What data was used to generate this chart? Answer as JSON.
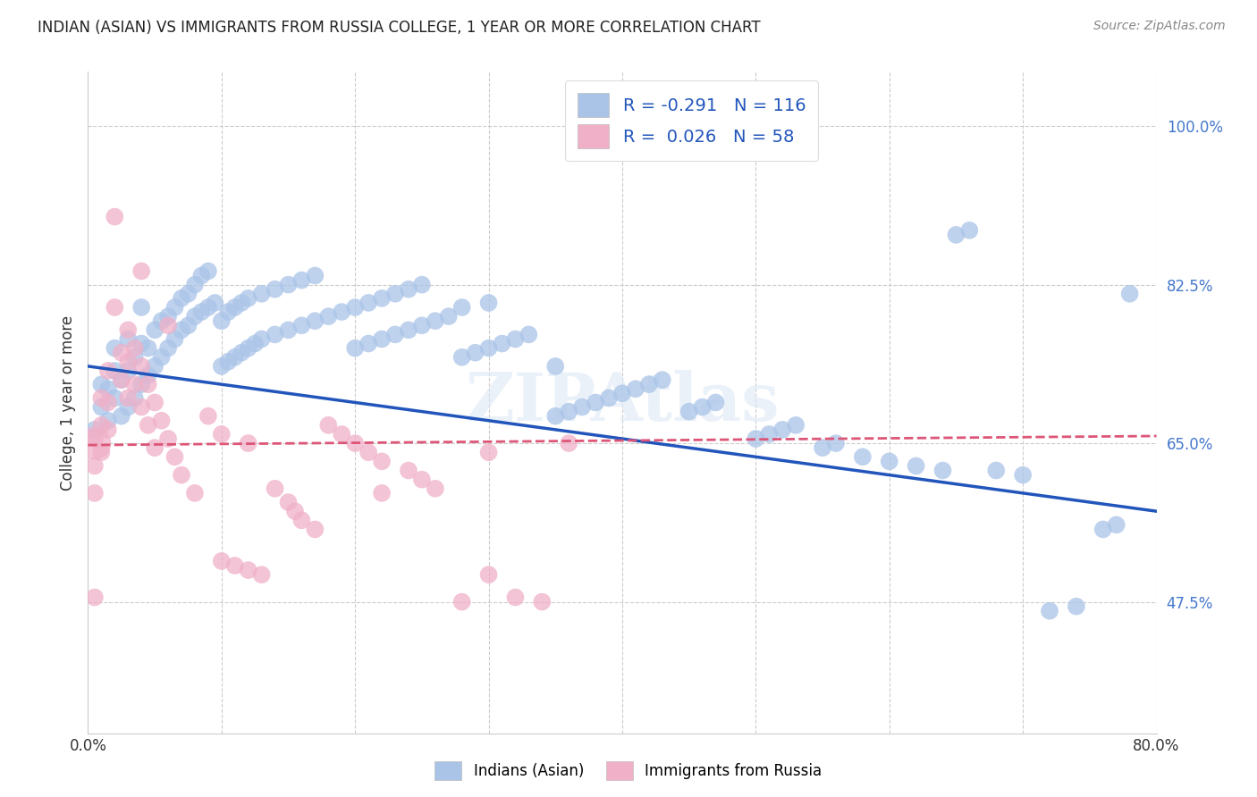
{
  "title": "INDIAN (ASIAN) VS IMMIGRANTS FROM RUSSIA COLLEGE, 1 YEAR OR MORE CORRELATION CHART",
  "source": "Source: ZipAtlas.com",
  "ylabel": "College, 1 year or more",
  "legend_label_blue": "Indians (Asian)",
  "legend_label_pink": "Immigrants from Russia",
  "blue_color": "#aac4e8",
  "pink_color": "#f0b0c8",
  "trend_blue_color": "#2255bb",
  "trend_pink_color": "#dd5577",
  "watermark": "ZIPAtlas",
  "xmin": 0.0,
  "xmax": 0.8,
  "ymin": 0.33,
  "ymax": 1.06,
  "ytick_vals": [
    1.0,
    0.825,
    0.65,
    0.475
  ],
  "ytick_labels": [
    "100.0%",
    "82.5%",
    "65.0%",
    "47.5%"
  ],
  "xtick_vals": [
    0.0,
    0.1,
    0.2,
    0.3,
    0.4,
    0.5,
    0.6,
    0.7,
    0.8
  ],
  "xtick_labels": [
    "0.0%",
    "",
    "",
    "",
    "",
    "",
    "",
    "",
    "80.0%"
  ],
  "blue_trend_start_x": 0.0,
  "blue_trend_start_y": 0.735,
  "blue_trend_end_x": 0.8,
  "blue_trend_end_y": 0.575,
  "pink_trend_start_x": 0.0,
  "pink_trend_start_y": 0.648,
  "pink_trend_end_x": 0.8,
  "pink_trend_end_y": 0.658,
  "blue_points": [
    [
      0.005,
      0.665
    ],
    [
      0.01,
      0.69
    ],
    [
      0.01,
      0.715
    ],
    [
      0.015,
      0.675
    ],
    [
      0.015,
      0.71
    ],
    [
      0.02,
      0.7
    ],
    [
      0.02,
      0.73
    ],
    [
      0.02,
      0.755
    ],
    [
      0.025,
      0.68
    ],
    [
      0.025,
      0.72
    ],
    [
      0.03,
      0.69
    ],
    [
      0.03,
      0.73
    ],
    [
      0.03,
      0.765
    ],
    [
      0.035,
      0.7
    ],
    [
      0.035,
      0.745
    ],
    [
      0.04,
      0.715
    ],
    [
      0.04,
      0.76
    ],
    [
      0.04,
      0.8
    ],
    [
      0.045,
      0.725
    ],
    [
      0.045,
      0.755
    ],
    [
      0.05,
      0.735
    ],
    [
      0.05,
      0.775
    ],
    [
      0.055,
      0.745
    ],
    [
      0.055,
      0.785
    ],
    [
      0.06,
      0.755
    ],
    [
      0.06,
      0.79
    ],
    [
      0.065,
      0.765
    ],
    [
      0.065,
      0.8
    ],
    [
      0.07,
      0.775
    ],
    [
      0.07,
      0.81
    ],
    [
      0.075,
      0.78
    ],
    [
      0.075,
      0.815
    ],
    [
      0.08,
      0.79
    ],
    [
      0.08,
      0.825
    ],
    [
      0.085,
      0.795
    ],
    [
      0.085,
      0.835
    ],
    [
      0.09,
      0.8
    ],
    [
      0.09,
      0.84
    ],
    [
      0.095,
      0.805
    ],
    [
      0.1,
      0.735
    ],
    [
      0.1,
      0.785
    ],
    [
      0.105,
      0.74
    ],
    [
      0.105,
      0.795
    ],
    [
      0.11,
      0.745
    ],
    [
      0.11,
      0.8
    ],
    [
      0.115,
      0.75
    ],
    [
      0.115,
      0.805
    ],
    [
      0.12,
      0.755
    ],
    [
      0.12,
      0.81
    ],
    [
      0.125,
      0.76
    ],
    [
      0.13,
      0.765
    ],
    [
      0.13,
      0.815
    ],
    [
      0.14,
      0.77
    ],
    [
      0.14,
      0.82
    ],
    [
      0.15,
      0.775
    ],
    [
      0.15,
      0.825
    ],
    [
      0.16,
      0.78
    ],
    [
      0.16,
      0.83
    ],
    [
      0.17,
      0.785
    ],
    [
      0.17,
      0.835
    ],
    [
      0.18,
      0.79
    ],
    [
      0.19,
      0.795
    ],
    [
      0.2,
      0.755
    ],
    [
      0.2,
      0.8
    ],
    [
      0.21,
      0.76
    ],
    [
      0.21,
      0.805
    ],
    [
      0.22,
      0.765
    ],
    [
      0.22,
      0.81
    ],
    [
      0.23,
      0.77
    ],
    [
      0.23,
      0.815
    ],
    [
      0.24,
      0.775
    ],
    [
      0.24,
      0.82
    ],
    [
      0.25,
      0.78
    ],
    [
      0.25,
      0.825
    ],
    [
      0.26,
      0.785
    ],
    [
      0.27,
      0.79
    ],
    [
      0.28,
      0.745
    ],
    [
      0.28,
      0.8
    ],
    [
      0.29,
      0.75
    ],
    [
      0.3,
      0.755
    ],
    [
      0.3,
      0.805
    ],
    [
      0.31,
      0.76
    ],
    [
      0.32,
      0.765
    ],
    [
      0.33,
      0.77
    ],
    [
      0.35,
      0.68
    ],
    [
      0.35,
      0.735
    ],
    [
      0.36,
      0.685
    ],
    [
      0.37,
      0.69
    ],
    [
      0.38,
      0.695
    ],
    [
      0.39,
      0.7
    ],
    [
      0.4,
      0.705
    ],
    [
      0.41,
      0.71
    ],
    [
      0.42,
      0.715
    ],
    [
      0.43,
      0.72
    ],
    [
      0.45,
      0.685
    ],
    [
      0.46,
      0.69
    ],
    [
      0.47,
      0.695
    ],
    [
      0.5,
      0.655
    ],
    [
      0.51,
      0.66
    ],
    [
      0.52,
      0.665
    ],
    [
      0.53,
      0.67
    ],
    [
      0.55,
      0.645
    ],
    [
      0.56,
      0.65
    ],
    [
      0.58,
      0.635
    ],
    [
      0.6,
      0.63
    ],
    [
      0.62,
      0.625
    ],
    [
      0.64,
      0.62
    ],
    [
      0.65,
      0.88
    ],
    [
      0.66,
      0.885
    ],
    [
      0.68,
      0.62
    ],
    [
      0.7,
      0.615
    ],
    [
      0.72,
      0.465
    ],
    [
      0.74,
      0.47
    ],
    [
      0.76,
      0.555
    ],
    [
      0.77,
      0.56
    ],
    [
      0.78,
      0.815
    ]
  ],
  "pink_points": [
    [
      0.005,
      0.655
    ],
    [
      0.005,
      0.625
    ],
    [
      0.005,
      0.595
    ],
    [
      0.01,
      0.7
    ],
    [
      0.01,
      0.67
    ],
    [
      0.01,
      0.64
    ],
    [
      0.015,
      0.73
    ],
    [
      0.015,
      0.695
    ],
    [
      0.015,
      0.665
    ],
    [
      0.02,
      0.9
    ],
    [
      0.02,
      0.8
    ],
    [
      0.025,
      0.75
    ],
    [
      0.025,
      0.72
    ],
    [
      0.03,
      0.775
    ],
    [
      0.03,
      0.74
    ],
    [
      0.03,
      0.7
    ],
    [
      0.035,
      0.755
    ],
    [
      0.035,
      0.715
    ],
    [
      0.04,
      0.735
    ],
    [
      0.04,
      0.69
    ],
    [
      0.04,
      0.84
    ],
    [
      0.045,
      0.715
    ],
    [
      0.045,
      0.67
    ],
    [
      0.05,
      0.695
    ],
    [
      0.05,
      0.645
    ],
    [
      0.055,
      0.675
    ],
    [
      0.06,
      0.655
    ],
    [
      0.06,
      0.78
    ],
    [
      0.065,
      0.635
    ],
    [
      0.07,
      0.615
    ],
    [
      0.08,
      0.595
    ],
    [
      0.09,
      0.68
    ],
    [
      0.1,
      0.66
    ],
    [
      0.1,
      0.52
    ],
    [
      0.11,
      0.515
    ],
    [
      0.12,
      0.65
    ],
    [
      0.12,
      0.51
    ],
    [
      0.13,
      0.505
    ],
    [
      0.14,
      0.6
    ],
    [
      0.15,
      0.585
    ],
    [
      0.155,
      0.575
    ],
    [
      0.16,
      0.565
    ],
    [
      0.17,
      0.555
    ],
    [
      0.18,
      0.67
    ],
    [
      0.19,
      0.66
    ],
    [
      0.2,
      0.65
    ],
    [
      0.21,
      0.64
    ],
    [
      0.22,
      0.63
    ],
    [
      0.22,
      0.595
    ],
    [
      0.24,
      0.62
    ],
    [
      0.25,
      0.61
    ],
    [
      0.26,
      0.6
    ],
    [
      0.28,
      0.475
    ],
    [
      0.3,
      0.64
    ],
    [
      0.3,
      0.505
    ],
    [
      0.32,
      0.48
    ],
    [
      0.34,
      0.475
    ],
    [
      0.36,
      0.65
    ],
    [
      0.005,
      0.48
    ]
  ]
}
